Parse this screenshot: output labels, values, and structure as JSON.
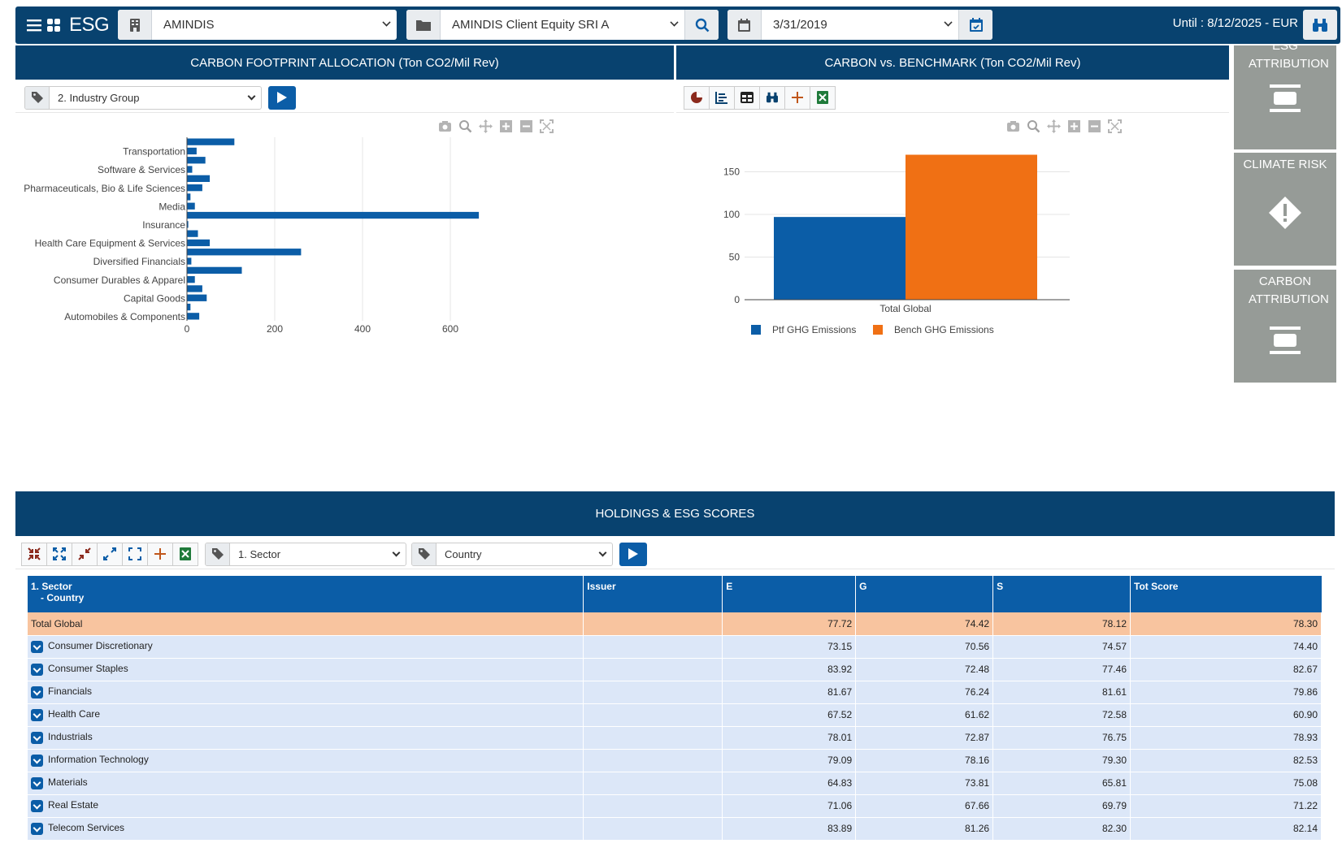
{
  "topbar": {
    "brand": "ESG",
    "entity": "AMINDIS",
    "portfolio": "AMINDIS Client Equity SRI A",
    "date": "3/31/2019",
    "until": "Until : 8/12/2025 - EUR"
  },
  "carbon_alloc": {
    "title": "CARBON FOOTPRINT ALLOCATION (Ton CO2/Mil Rev)",
    "grouping": "2. Industry Group"
  },
  "carbon_bench": {
    "title": "CARBON vs. BENCHMARK (Ton CO2/Mil Rev)"
  },
  "side": {
    "esg_attr": "ESG ATTRIBUTION",
    "climate": "CLIMATE RISK",
    "carbon_attr": "CARBON ATTRIBUTION"
  },
  "holdings": {
    "title": "HOLDINGS & ESG SCORES",
    "group1": "1. Sector",
    "group2": "Country",
    "columns": {
      "sector": "1. Sector",
      "country": "- Country",
      "issuer": "Issuer",
      "e": "E",
      "g": "G",
      "s": "S",
      "tot": "Tot Score"
    },
    "total": {
      "name": "Total Global",
      "e": "77.72",
      "g": "74.42",
      "s": "78.12",
      "tot": "78.30"
    },
    "rows": [
      {
        "name": "Consumer Discretionary",
        "e": "73.15",
        "g": "70.56",
        "s": "74.57",
        "tot": "74.40"
      },
      {
        "name": "Consumer Staples",
        "e": "83.92",
        "g": "72.48",
        "s": "77.46",
        "tot": "82.67"
      },
      {
        "name": "Financials",
        "e": "81.67",
        "g": "76.24",
        "s": "81.61",
        "tot": "79.86"
      },
      {
        "name": "Health Care",
        "e": "67.52",
        "g": "61.62",
        "s": "72.58",
        "tot": "60.90"
      },
      {
        "name": "Industrials",
        "e": "78.01",
        "g": "72.87",
        "s": "76.75",
        "tot": "78.93"
      },
      {
        "name": "Information Technology",
        "e": "79.09",
        "g": "78.16",
        "s": "79.30",
        "tot": "82.53"
      },
      {
        "name": "Materials",
        "e": "64.83",
        "g": "73.81",
        "s": "65.81",
        "tot": "75.08"
      },
      {
        "name": "Real Estate",
        "e": "71.06",
        "g": "67.66",
        "s": "69.79",
        "tot": "71.22"
      },
      {
        "name": "Telecom Services",
        "e": "83.89",
        "g": "81.26",
        "s": "82.30",
        "tot": "82.14"
      }
    ]
  },
  "chart_data": [
    {
      "type": "bar",
      "orientation": "horizontal",
      "categories": [
        "Automobiles & Components",
        "",
        "Capital Goods",
        "",
        "Consumer Durables & Apparel",
        "",
        "Diversified Financials",
        "",
        "Health Care Equipment & Services",
        "",
        "Insurance",
        "",
        "Media",
        "",
        "Pharmaceuticals, Bio & Life Sciences",
        "",
        "Software & Services",
        "",
        "Transportation",
        ""
      ],
      "values": [
        28,
        8,
        45,
        35,
        18,
        125,
        10,
        260,
        52,
        25,
        3,
        665,
        18,
        8,
        35,
        52,
        12,
        42,
        22,
        108
      ],
      "xticks": [
        0,
        200,
        400,
        600
      ],
      "xlim": [
        0,
        800
      ],
      "color": "#0b5da7"
    },
    {
      "type": "bar",
      "categories": [
        "Total Global"
      ],
      "series": [
        {
          "name": "Ptf GHG Emissions",
          "values": [
            97
          ],
          "color": "#0b5da7"
        },
        {
          "name": "Bench GHG Emissions",
          "values": [
            170
          ],
          "color": "#f07014"
        }
      ],
      "yticks": [
        0,
        50,
        100,
        150
      ],
      "ylim": [
        0,
        180
      ],
      "legend": "bottom"
    }
  ]
}
